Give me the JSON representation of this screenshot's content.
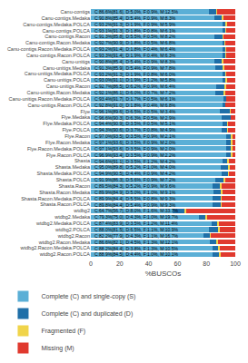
{
  "chart_data": {
    "type": "bar",
    "orientation": "horizontal",
    "stacked": true,
    "categories": [
      "Canu-contigs",
      "Canu-contigs.Medaka",
      "Canu-contigs.Medaka.POLCA",
      "Canu-contigs.POLCA",
      "Canu-contigs.Racon",
      "Canu-contigs.Racon.Medaka",
      "Canu-contigs.Racon.Medaka.POLCA",
      "Canu-contigs.Racon.POLCA",
      "Canu-unitigs",
      "Canu-unitigs.Medaka",
      "Canu-unitigs.Medaka.POLCA",
      "Canu-unitigs.POLCA",
      "Canu-unitigs.Racon",
      "Canu-unitigs.Racon.Medaka",
      "Canu-unitigs.Racon.Medaka.POLCA",
      "Canu-unitigs.Racon.POLCA",
      "Flye",
      "Flye.Medaka",
      "Flye.Medaka.POLCA",
      "Flye.POLCA",
      "Flye.Racon",
      "Flye.Racon.Medaka",
      "Flye.Racon.Medaka.POLCA",
      "Flye.Racon.POLCA",
      "Shasta",
      "Shasta.Medaka",
      "Shasta.Medaka.POLCA",
      "Shasta.POLCA",
      "Shasta.Racon",
      "Shasta.Racon.Medaka",
      "Shasta.Racon.Medaka.POLCA",
      "Shasta.Racon.POLCA",
      "wtdbg2",
      "wtdbg2.Medaka",
      "wtdbg2.Medaka.POLCA",
      "wtdbg2.POLCA",
      "wtdbg2.Racon",
      "wtdbg2.Racon.Medaka",
      "wtdbg2.Racon.Medaka.POLCA",
      "wtdbg2.Racon.POLCA"
    ],
    "series": [
      {
        "name": "Complete (C) and single-copy (S)",
        "color": "#5bafd6",
        "values": [
          81.6,
          85.4,
          91.3,
          91.3,
          85.8,
          90.9,
          91.4,
          91.4,
          85.4,
          85.9,
          91.3,
          91.1,
          86.5,
          86.1,
          91.7,
          91.0,
          89.6,
          90.3,
          90.9,
          90.6,
          93.5,
          93.6,
          93.6,
          93.4,
          91.1,
          89.8,
          90.5,
          86.3,
          84.3,
          84.9,
          84.4,
          84.4,
          56.7,
          75.0,
          83.9,
          81.5,
          77.9,
          82.1,
          84.4,
          84.5
        ]
      },
      {
        "name": "Complete (C) and duplicated (D)",
        "color": "#1f6fa8",
        "values": [
          5.0,
          5.4,
          1.9,
          1.8,
          5.5,
          1.8,
          1.8,
          1.9,
          5.4,
          5.4,
          1.9,
          1.9,
          6.2,
          6.0,
          1.7,
          1.8,
          6.5,
          6.3,
          3.5,
          3.7,
          3.5,
          3.5,
          3.5,
          3.5,
          3.5,
          5.2,
          4.4,
          5.6,
          5.2,
          5.0,
          5.5,
          5.4,
          8.0,
          4.3,
          3.5,
          6.5,
          4.3,
          4.5,
          3.8,
          4.4
        ]
      },
      {
        "name": "Fragmented (F)",
        "color": "#f0d44a",
        "values": [
          0.9,
          0.9,
          0.9,
          0.8,
          0.5,
          0.5,
          0.4,
          0.4,
          0.9,
          0.9,
          0.8,
          1.2,
          0.9,
          0.7,
          0.5,
          0.4,
          0.5,
          0.5,
          0.5,
          0.8,
          0.9,
          0.9,
          0.9,
          0.9,
          1.2,
          1.0,
          0.9,
          0.9,
          0.9,
          1.0,
          0.8,
          0.9,
          1.6,
          1.0,
          1.2,
          1.1,
          1.1,
          1.3,
          1.3,
          1.0
        ]
      },
      {
        "name": "Missing (M)",
        "color": "#e0392e",
        "values": [
          12.5,
          8.3,
          5.9,
          6.1,
          8.2,
          6.8,
          6.4,
          6.3,
          8.3,
          7.8,
          6.0,
          5.8,
          6.4,
          7.2,
          6.1,
          6.8,
          3.4,
          2.9,
          5.1,
          4.9,
          2.1,
          2.0,
          2.0,
          2.2,
          4.2,
          4.0,
          4.2,
          7.2,
          9.6,
          9.1,
          9.3,
          9.3,
          33.7,
          19.7,
          11.4,
          10.9,
          16.7,
          12.1,
          10.5,
          10.1
        ]
      }
    ],
    "annotations": [
      "C:86.6%[81.6], D:5.0%, F:0.9%, M:12.5%",
      "C:90.8%[85.4], D:5.4%, F:0.9%, M:8.3%",
      "C:93.2%[91.3], D:1.9%, F:0.9%, M:5.9%",
      "C:93.1%[91.3], D:1.8%, F:0.8%, M:6.1%",
      "C:91.3%[85.8], D:5.5%, F:0.5%, M:8.2%",
      "C:92.7%[90.9], D:1.8%, F:0.5%, M:6.8%",
      "C:93.2%[91.4], D:1.8%, F:0.4%, M:6.4%",
      "C:93.3%[91.4], D:1.9%, F:0.4%, M:6.3%",
      "C:90.8%[85.4], D:5.4%, F:0.9%, M:8.3%",
      "C:91.3%[85.9], D:5.4%, F:0.9%, M:7.8%",
      "C:93.2%[91.3], D:1.9%, F:0.8%, M:6.0%",
      "C:93.0%[91.1], D:1.9%, F:1.2%, M:5.8%",
      "C:92.7%[86.5], D:6.2%, F:0.9%, M:6.4%",
      "C:92.1%[86.1], D:6.0%, F:0.7%, M:7.2%",
      "C:93.4%[91.7], D:1.7%, F:0.5%, M:6.1%",
      "C:92.8%[91.0], D:1.8%, F:0.4%, M:6.8%",
      "C:96.1%[89.6], D:6.5%, F:0.5%, M:3.4%",
      "C:96.6%[90.3], D:6.3%, F:0.5%, M:2.9%",
      "C:94.4%[90.9], D:3.5%, F:0.5%, M:5.1%",
      "C:94.3%[90.6], D:3.7%, F:0.8%, M:4.9%",
      "C:97.0%[93.5], D:3.5%, F:0.9%, M:2.1%",
      "C:97.1%[93.6], D:3.5%, F:0.9%, M:2.0%",
      "C:97.1%[93.6], D:3.5%, F:0.9%, M:2.0%",
      "C:96.9%[93.4], D:3.5%, F:0.9%, M:2.2%",
      "C:94.6%[91.1], D:3.5%, F:1.2%, M:4.2%",
      "C:95.0%[89.8], D:5.2%, F:1.0%, M:4.0%",
      "C:94.9%[90.5], D:4.4%, F:0.9%, M:4.2%",
      "C:91.9%[86.3], D:5.6%, F:0.9%, M:7.2%",
      "C:89.5%[84.3], D:5.2%, F:0.9%, M:9.6%",
      "C:89.9%[84.9], D:5.0%, F:1.0%, M:9.1%",
      "C:89.9%[84.4], D:5.5%, F:0.8%, M:9.3%",
      "C:89.8%[84.4], D:5.4%, F:0.9%, M:9.3%",
      "C:64.7%[56.7], D:8.0%, F:1.6%, M:33.7%",
      "C:79.3%[75.0], D:4.3%, F:1.0%, M:19.7%",
      "C:87.4%[83.9], D:3.5%, F:1.2%, M:11.4%",
      "C:88.0%[81.5], D:6.5%, F:1.1%, M:10.9%",
      "C:82.2%[77.9], D:4.3%, F:1.1%, M:16.7%",
      "C:86.6%[82.1], D:4.5%, F:1.3%, M:12.1%",
      "C:88.2%[84.4], D:3.8%, F:1.3%, M:10.5%",
      "C:88.9%[84.5], D:4.4%, F:1.0%, M:10.1%"
    ],
    "xlabel": "%BUSCOs",
    "xlim": [
      0,
      100
    ],
    "xticks": [
      0,
      20,
      40,
      60,
      80,
      100
    ],
    "grid": true,
    "legend": "bottom"
  }
}
